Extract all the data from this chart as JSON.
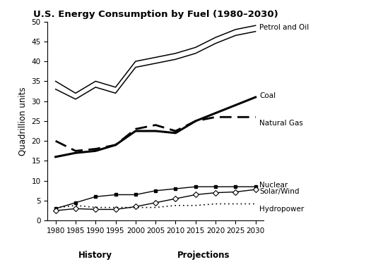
{
  "title": "U.S. Energy Consumption by Fuel (1980–2030)",
  "ylabel": "Quadrillion units",
  "xlabel_history": "History",
  "xlabel_projections": "Projections",
  "years": [
    1980,
    1985,
    1990,
    1995,
    2000,
    2005,
    2010,
    2015,
    2020,
    2025,
    2030
  ],
  "petrol_oil_upper": [
    35.0,
    32.0,
    35.0,
    33.5,
    40.0,
    41.0,
    42.0,
    43.5,
    46.0,
    48.0,
    49.0
  ],
  "petrol_oil_lower": [
    33.0,
    30.5,
    33.5,
    32.0,
    38.5,
    39.5,
    40.5,
    42.0,
    44.5,
    46.5,
    47.5
  ],
  "coal": [
    16.0,
    17.0,
    17.5,
    19.0,
    22.5,
    22.5,
    22.0,
    25.0,
    27.0,
    29.0,
    31.0
  ],
  "natural_gas": [
    20.0,
    17.5,
    18.0,
    19.0,
    23.0,
    24.0,
    22.5,
    25.0,
    26.0,
    26.0,
    26.0
  ],
  "nuclear": [
    3.0,
    4.5,
    6.0,
    6.5,
    6.5,
    7.5,
    8.0,
    8.5,
    8.5,
    8.5,
    8.5
  ],
  "solar_wind": [
    2.5,
    3.0,
    2.8,
    2.8,
    3.5,
    4.5,
    5.5,
    6.5,
    7.0,
    7.2,
    7.8
  ],
  "hydropower": [
    3.2,
    3.8,
    3.3,
    3.3,
    3.3,
    3.3,
    3.8,
    3.8,
    4.2,
    4.2,
    4.2
  ],
  "label_petrol": "Petrol and Oil",
  "label_coal": "Coal",
  "label_gas": "Natural Gas",
  "label_nuclear": "Nuclear",
  "label_solar": "Solar/Wind",
  "label_hydro": "Hydropower",
  "ylim": [
    0,
    50
  ],
  "yticks": [
    0,
    5,
    10,
    15,
    20,
    25,
    30,
    35,
    40,
    45,
    50
  ],
  "bg_color": "#ffffff"
}
